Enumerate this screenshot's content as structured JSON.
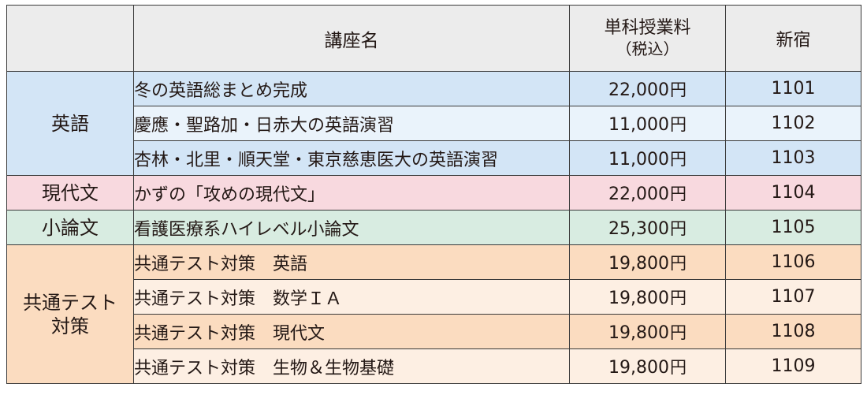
{
  "header": {
    "course_name": "講座名",
    "fee_line1": "単科授業料",
    "fee_line2": "（税込）",
    "location": "新宿"
  },
  "categories": {
    "english": "英語",
    "modern_japanese": "現代文",
    "essay": "小論文",
    "common_test_line1": "共通テスト",
    "common_test_line2": "対策"
  },
  "rows": [
    {
      "name": "冬の英語総まとめ完成",
      "fee": "22,000",
      "code": "1101"
    },
    {
      "name": "慶應・聖路加・日赤大の英語演習",
      "fee": "11,000",
      "code": "1102"
    },
    {
      "name": "杏林・北里・順天堂・東京慈恵医大の英語演習",
      "fee": "11,000",
      "code": "1103"
    },
    {
      "name": "かずの「攻めの現代文」",
      "fee": "22,000",
      "code": "1104"
    },
    {
      "name": "看護医療系ハイレベル小論文",
      "fee": "25,300",
      "code": "1105"
    },
    {
      "name": "共通テスト対策　英語",
      "fee": "19,800",
      "code": "1106"
    },
    {
      "name": "共通テスト対策　数学ＩＡ",
      "fee": "19,800",
      "code": "1107"
    },
    {
      "name": "共通テスト対策　現代文",
      "fee": "19,800",
      "code": "1108"
    },
    {
      "name": "共通テスト対策　生物＆生物基礎",
      "fee": "19,800",
      "code": "1109"
    }
  ],
  "currency": "円",
  "colors": {
    "english": "#d3e5f6",
    "english_alt": "#eaf3fb",
    "modern_japanese": "#f8d9df",
    "essay": "#d8ece1",
    "common_test": "#fbdcc0",
    "common_test_alt": "#fdefe3",
    "header": "#ececec"
  }
}
